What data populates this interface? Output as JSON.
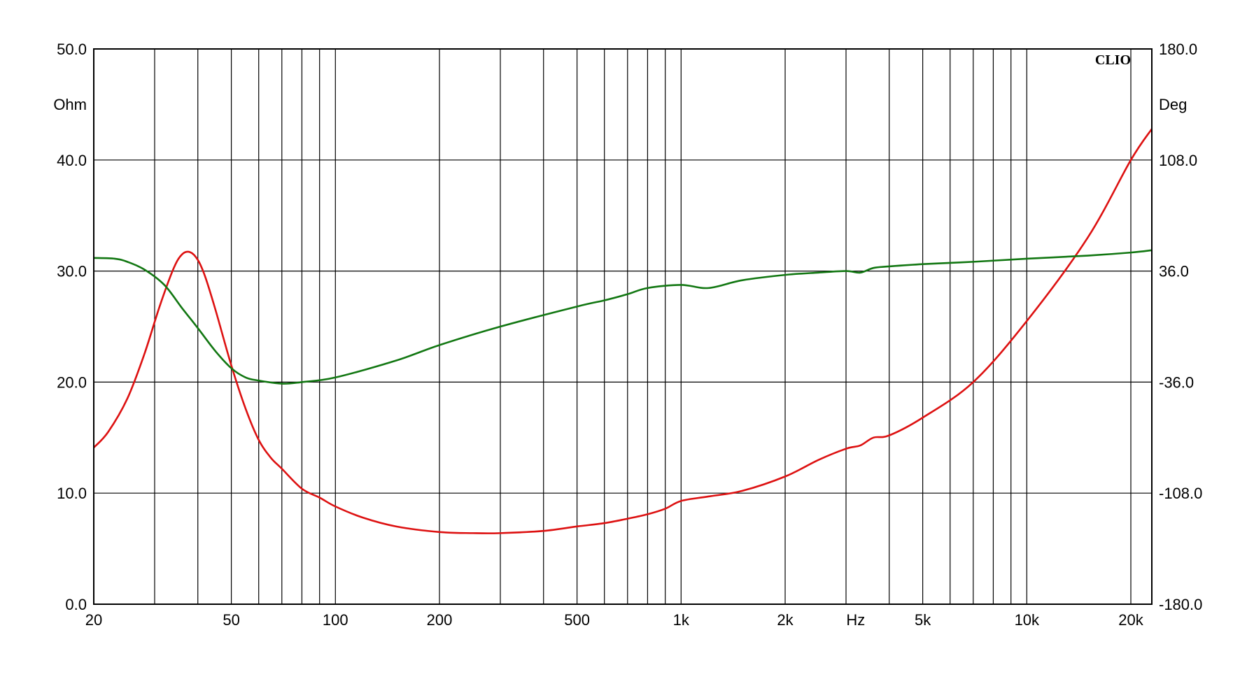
{
  "chart_data": {
    "type": "line",
    "brand": "CLIO",
    "x_axis": {
      "label": "Hz",
      "scale": "log",
      "range": [
        20,
        23000
      ],
      "tick_labels": [
        {
          "value": 20,
          "text": "20"
        },
        {
          "value": 50,
          "text": "50"
        },
        {
          "value": 100,
          "text": "100"
        },
        {
          "value": 200,
          "text": "200"
        },
        {
          "value": 500,
          "text": "500"
        },
        {
          "value": 1000,
          "text": "1k"
        },
        {
          "value": 2000,
          "text": "2k"
        },
        {
          "value": 5000,
          "text": "5k"
        },
        {
          "value": 10000,
          "text": "10k"
        },
        {
          "value": 20000,
          "text": "20k"
        }
      ]
    },
    "y_left": {
      "label": "Ohm",
      "range": [
        0,
        50
      ],
      "tick_labels": [
        "50.0",
        "40.0",
        "30.0",
        "20.0",
        "10.0",
        "0.0"
      ]
    },
    "y_right": {
      "label": "Deg",
      "range": [
        -180,
        180
      ],
      "tick_labels": [
        "180.0",
        "108.0",
        "36.0",
        "-36.0",
        "-108.0",
        "-180.0"
      ]
    },
    "grid": true,
    "series": [
      {
        "key": "impedance",
        "axis": "left",
        "color": "#dd1111",
        "points": [
          [
            20,
            14.1
          ],
          [
            22,
            15.5
          ],
          [
            25,
            18.5
          ],
          [
            28,
            22.5
          ],
          [
            31,
            26.8
          ],
          [
            34,
            30.2
          ],
          [
            36,
            31.5
          ],
          [
            38,
            31.7
          ],
          [
            40,
            31.0
          ],
          [
            42,
            29.5
          ],
          [
            45,
            26.5
          ],
          [
            50,
            21.5
          ],
          [
            55,
            17.6
          ],
          [
            60,
            14.8
          ],
          [
            65,
            13.2
          ],
          [
            70,
            12.2
          ],
          [
            80,
            10.4
          ],
          [
            90,
            9.6
          ],
          [
            100,
            8.8
          ],
          [
            120,
            7.8
          ],
          [
            150,
            7.0
          ],
          [
            200,
            6.5
          ],
          [
            250,
            6.4
          ],
          [
            300,
            6.4
          ],
          [
            400,
            6.6
          ],
          [
            500,
            7.0
          ],
          [
            600,
            7.3
          ],
          [
            700,
            7.7
          ],
          [
            800,
            8.1
          ],
          [
            900,
            8.6
          ],
          [
            1000,
            9.3
          ],
          [
            1200,
            9.7
          ],
          [
            1500,
            10.2
          ],
          [
            2000,
            11.5
          ],
          [
            2500,
            13.0
          ],
          [
            3000,
            14.0
          ],
          [
            3300,
            14.3
          ],
          [
            3600,
            15.0
          ],
          [
            4000,
            15.2
          ],
          [
            5000,
            16.8
          ],
          [
            7000,
            20.0
          ],
          [
            10000,
            25.5
          ],
          [
            15000,
            33.0
          ],
          [
            20000,
            40.0
          ],
          [
            23000,
            42.8
          ]
        ]
      },
      {
        "key": "phase",
        "axis": "right",
        "color": "#127712",
        "points": [
          [
            20,
            44.5
          ],
          [
            23,
            44
          ],
          [
            25,
            42
          ],
          [
            28,
            37
          ],
          [
            32,
            27
          ],
          [
            36,
            12
          ],
          [
            40,
            -1
          ],
          [
            45,
            -16
          ],
          [
            50,
            -27
          ],
          [
            55,
            -33
          ],
          [
            60,
            -35
          ],
          [
            70,
            -37
          ],
          [
            80,
            -36
          ],
          [
            100,
            -33
          ],
          [
            150,
            -22
          ],
          [
            200,
            -12
          ],
          [
            300,
            0
          ],
          [
            500,
            13
          ],
          [
            600,
            17
          ],
          [
            700,
            21
          ],
          [
            800,
            25
          ],
          [
            1000,
            27
          ],
          [
            1200,
            25
          ],
          [
            1500,
            30
          ],
          [
            2000,
            33.5
          ],
          [
            2500,
            35
          ],
          [
            3000,
            36
          ],
          [
            3300,
            35
          ],
          [
            3600,
            38
          ],
          [
            4000,
            39
          ],
          [
            5000,
            40.5
          ],
          [
            7000,
            42
          ],
          [
            10000,
            44
          ],
          [
            15000,
            46
          ],
          [
            20000,
            48
          ],
          [
            23000,
            49.5
          ]
        ]
      }
    ]
  }
}
